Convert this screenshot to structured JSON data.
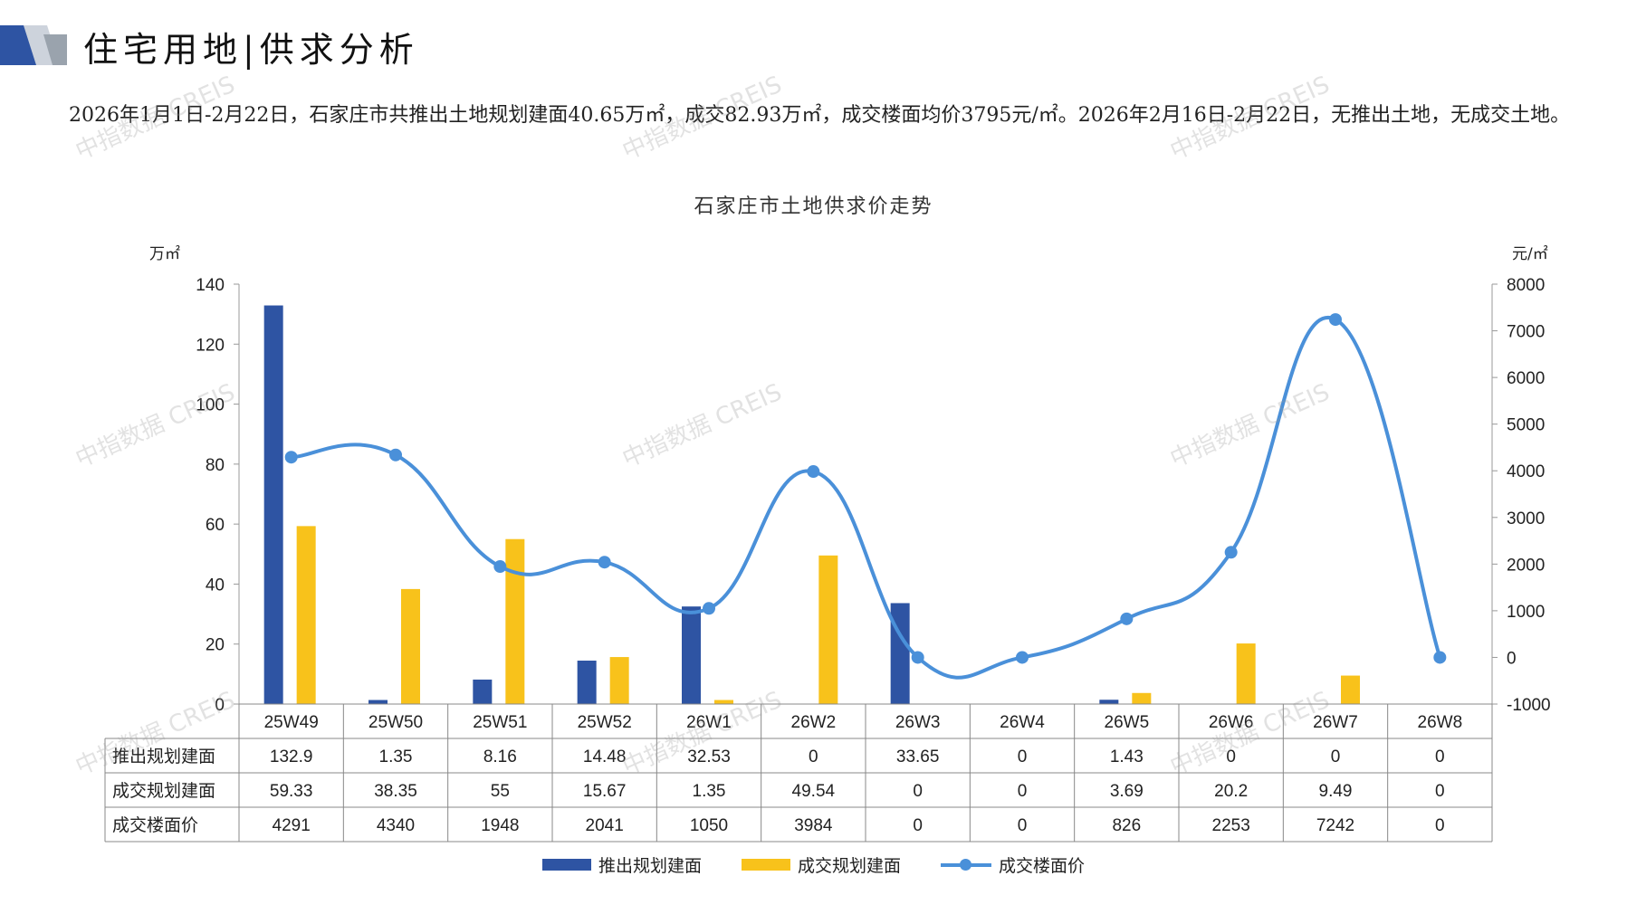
{
  "header": {
    "title": "住宅用地|供求分析"
  },
  "summary_text": "2026年1月1日-2月22日，石家庄市共推出土地规划建面40.65万㎡，成交82.93万㎡，成交楼面均价3795元/㎡。2026年2月16日-2月22日，无推出土地，无成交土地。",
  "watermark": "中指数据 CREIS",
  "colors": {
    "supply": "#2e54a3",
    "deal": "#f8c21b",
    "price": "#4a90d9"
  },
  "chart_data": {
    "type": "bar",
    "title": "石家庄市土地供求价走势",
    "ylabel_left": "万㎡",
    "ylabel_right": "元/㎡",
    "ylim_left": [
      0,
      140
    ],
    "yticks_left": [
      0,
      20,
      40,
      60,
      80,
      100,
      120,
      140
    ],
    "ylim_right": [
      -1000,
      8000
    ],
    "yticks_right": [
      -1000,
      0,
      1000,
      2000,
      3000,
      4000,
      5000,
      6000,
      7000,
      8000
    ],
    "categories": [
      "25W49",
      "25W50",
      "25W51",
      "25W52",
      "26W1",
      "26W2",
      "26W3",
      "26W4",
      "26W5",
      "26W6",
      "26W7",
      "26W8"
    ],
    "series": [
      {
        "name": "推出规划建面",
        "type": "bar",
        "axis": "left",
        "values": [
          132.9,
          1.35,
          8.16,
          14.48,
          32.53,
          0,
          33.65,
          0,
          1.43,
          0,
          0,
          0
        ],
        "labels": [
          "132.9",
          "1.35",
          "8.16",
          "14.48",
          "32.53",
          "0",
          "33.65",
          "0",
          "1.43",
          "0",
          "0",
          "0"
        ]
      },
      {
        "name": "成交规划建面",
        "type": "bar",
        "axis": "left",
        "values": [
          59.33,
          38.35,
          55,
          15.67,
          1.35,
          49.54,
          0,
          0,
          3.69,
          20.2,
          9.49,
          0
        ],
        "labels": [
          "59.33",
          "38.35",
          "55",
          "15.67",
          "1.35",
          "49.54",
          "0",
          "0",
          "3.69",
          "20.2",
          "9.49",
          "0"
        ]
      },
      {
        "name": "成交楼面价",
        "type": "line",
        "axis": "right",
        "values": [
          4291,
          4340,
          1948,
          2041,
          1050,
          3984,
          0,
          0,
          826,
          2253,
          7242,
          0
        ],
        "labels": [
          "4291",
          "4340",
          "1948",
          "2041",
          "1050",
          "3984",
          "0",
          "0",
          "826",
          "2253",
          "7242",
          "0"
        ]
      }
    ],
    "legend": "bottom",
    "grid": false
  }
}
